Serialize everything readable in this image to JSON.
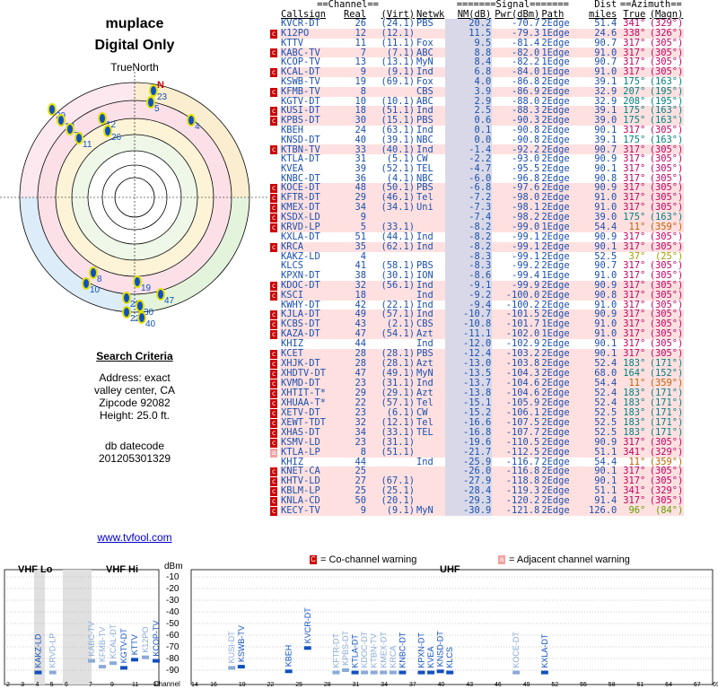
{
  "header": {
    "title": "muplace",
    "subtitle": "Digital Only",
    "north_label": "TrueNorth",
    "north_mark": "N"
  },
  "search": {
    "title": "Search Criteria",
    "address": "Address: exact",
    "city": "valley center, CA",
    "zip": "Zipcode 92082",
    "height": "Height: 25.0 ft.",
    "db_label": "db datecode",
    "db_value": "201205301329"
  },
  "footer_link": "www.tvfool.com",
  "polar_labels": [
    "23",
    "5",
    "12",
    "26",
    "4",
    "29",
    "13",
    "7",
    "11",
    "8",
    "10",
    "28",
    "22",
    "19",
    "30",
    "47",
    "40"
  ],
  "table": {
    "group_headers": [
      "==Channel==",
      "=======Signal=======",
      "Dist",
      "==Azimuth=="
    ],
    "columns": [
      "Callsign",
      "Real",
      "(Virt)",
      "Netwk",
      "NM(dB)",
      "Pwr(dBm)",
      "Path",
      "miles",
      "True",
      "(Magn)"
    ],
    "rows": [
      [
        "",
        "KVCR-DT",
        "26",
        "(24.1)",
        "PBS",
        "20.2",
        "-70.7",
        "2Edge",
        "51.4",
        "341°",
        "(329°)",
        "#c00060",
        "#fff"
      ],
      [
        "c",
        "K12PO",
        "12",
        "(12.1)",
        "",
        "11.5",
        "-79.3",
        "1Edge",
        "24.6",
        "338°",
        "(326°)",
        "#c00060",
        "#ffe0e0"
      ],
      [
        "",
        "KTTV",
        "11",
        "(11.1)",
        "Fox",
        "9.5",
        "-81.4",
        "2Edge",
        "90.7",
        "317°",
        "(305°)",
        "#c00060",
        "#fff"
      ],
      [
        "c",
        "KABC-TV",
        "7",
        "(7.1)",
        "ABC",
        "8.8",
        "-82.0",
        "1Edge",
        "91.0",
        "317°",
        "(305°)",
        "#c00060",
        "#ffe0e0"
      ],
      [
        "",
        "KCOP-TV",
        "13",
        "(13.1)",
        "MyN",
        "8.4",
        "-82.2",
        "1Edge",
        "90.7",
        "317°",
        "(305°)",
        "#c00060",
        "#fff"
      ],
      [
        "c",
        "KCAL-DT",
        "9",
        "(9.1)",
        "Ind",
        "6.8",
        "-84.0",
        "1Edge",
        "91.0",
        "317°",
        "(305°)",
        "#c00060",
        "#ffe0e0"
      ],
      [
        "",
        "KSWB-TV",
        "19",
        "(69.1)",
        "Fox",
        "4.0",
        "-86.8",
        "2Edge",
        "39.1",
        "175°",
        "(163°)",
        "#008080",
        "#fff"
      ],
      [
        "c",
        "KFMB-TV",
        "8",
        "",
        "CBS",
        "3.9",
        "-86.9",
        "2Edge",
        "32.9",
        "207°",
        "(195°)",
        "#008080",
        "#ffe0e0"
      ],
      [
        "",
        "KGTV-DT",
        "10",
        "(10.1)",
        "ABC",
        "2.9",
        "-88.0",
        "2Edge",
        "32.9",
        "208°",
        "(195°)",
        "#008080",
        "#fff"
      ],
      [
        "c",
        "KUSI-DT",
        "18",
        "(51.1)",
        "Ind",
        "2.5",
        "-88.3",
        "2Edge",
        "39.1",
        "175°",
        "(163°)",
        "#008080",
        "#ffe0e0"
      ],
      [
        "c",
        "KPBS-DT",
        "30",
        "(15.1)",
        "PBS",
        "0.6",
        "-90.3",
        "2Edge",
        "39.0",
        "175°",
        "(163°)",
        "#008080",
        "#ffe0e0"
      ],
      [
        "",
        "KBEH",
        "24",
        "(63.1)",
        "Ind",
        "0.1",
        "-90.8",
        "2Edge",
        "90.1",
        "317°",
        "(305°)",
        "#c00060",
        "#fff"
      ],
      [
        "",
        "KNSD-DT",
        "40",
        "(39.1)",
        "NBC",
        "0.0",
        "-90.8",
        "2Edge",
        "39.1",
        "175°",
        "(163°)",
        "#008080",
        "#fff"
      ],
      [
        "c",
        "KTBN-TV",
        "33",
        "(40.1)",
        "Ind",
        "-1.4",
        "-92.2",
        "2Edge",
        "90.7",
        "317°",
        "(305°)",
        "#c00060",
        "#ffe0e0"
      ],
      [
        "",
        "KTLA-DT",
        "31",
        "(5.1)",
        "CW",
        "-2.2",
        "-93.0",
        "2Edge",
        "90.9",
        "317°",
        "(305°)",
        "#c00060",
        "#fff"
      ],
      [
        "",
        "KVEA",
        "39",
        "(52.1)",
        "TEL",
        "-4.7",
        "-95.5",
        "2Edge",
        "90.1",
        "317°",
        "(305°)",
        "#c00060",
        "#fff"
      ],
      [
        "",
        "KNBC-DT",
        "36",
        "(4.1)",
        "NBC",
        "-6.0",
        "-96.8",
        "2Edge",
        "90.8",
        "317°",
        "(305°)",
        "#c00060",
        "#fff"
      ],
      [
        "c",
        "KOCE-DT",
        "48",
        "(50.1)",
        "PBS",
        "-6.8",
        "-97.6",
        "2Edge",
        "90.9",
        "317°",
        "(305°)",
        "#c00060",
        "#ffe0e0"
      ],
      [
        "c",
        "KFTR-DT",
        "29",
        "(46.1)",
        "Tel",
        "-7.2",
        "-98.0",
        "2Edge",
        "91.0",
        "317°",
        "(305°)",
        "#c00060",
        "#ffe0e0"
      ],
      [
        "c",
        "KMEX-DT",
        "34",
        "(34.1)",
        "Uni",
        "-7.3",
        "-98.1",
        "2Edge",
        "91.0",
        "317°",
        "(305°)",
        "#c00060",
        "#ffe0e0"
      ],
      [
        "c",
        "KSDX-LD",
        "9",
        "",
        "",
        "-7.4",
        "-98.2",
        "2Edge",
        "39.0",
        "175°",
        "(163°)",
        "#008080",
        "#ffe0e0"
      ],
      [
        "c",
        "KRVD-LP",
        "5",
        "(33.1)",
        "",
        "-8.2",
        "-99.0",
        "1Edge",
        "54.4",
        "11°",
        "(359°)",
        "#c06000",
        "#ffe0e0"
      ],
      [
        "",
        "KXLA-DT",
        "51",
        "(44.1)",
        "Ind",
        "-8.2",
        "-99.1",
        "2Edge",
        "90.9",
        "317°",
        "(305°)",
        "#c00060",
        "#fff"
      ],
      [
        "c",
        "KRCA",
        "35",
        "(62.1)",
        "Ind",
        "-8.2",
        "-99.1",
        "2Edge",
        "90.1",
        "317°",
        "(305°)",
        "#c00060",
        "#ffe0e0"
      ],
      [
        "",
        "KAKZ-LD",
        "4",
        "",
        "",
        "-8.3",
        "-99.1",
        "2Edge",
        "52.5",
        "37°",
        "(25°)",
        "#a0a000",
        "#fff"
      ],
      [
        "",
        "KLCS",
        "41",
        "(58.1)",
        "PBS",
        "-8.3",
        "-99.2",
        "2Edge",
        "90.7",
        "317°",
        "(305°)",
        "#c00060",
        "#fff"
      ],
      [
        "",
        "KPXN-DT",
        "38",
        "(30.1)",
        "ION",
        "-8.6",
        "-99.4",
        "1Edge",
        "91.0",
        "317°",
        "(305°)",
        "#c00060",
        "#fff"
      ],
      [
        "c",
        "KDOC-DT",
        "32",
        "(56.1)",
        "Ind",
        "-9.1",
        "-99.9",
        "2Edge",
        "90.9",
        "317°",
        "(305°)",
        "#c00060",
        "#ffe0e0"
      ],
      [
        "c",
        "KSCI",
        "18",
        "",
        "Ind",
        "-9.2",
        "-100.0",
        "2Edge",
        "90.8",
        "317°",
        "(305°)",
        "#c00060",
        "#ffe0e0"
      ],
      [
        "",
        "KWHY-DT",
        "42",
        "(22.1)",
        "Ind",
        "-9.4",
        "-100.2",
        "2Edge",
        "91.0",
        "317°",
        "(305°)",
        "#c00060",
        "#fff"
      ],
      [
        "c",
        "KJLA-DT",
        "49",
        "(57.1)",
        "Ind",
        "-10.7",
        "-101.5",
        "2Edge",
        "90.9",
        "317°",
        "(305°)",
        "#c00060",
        "#ffe0e0"
      ],
      [
        "c",
        "KCBS-DT",
        "43",
        "(2.1)",
        "CBS",
        "-10.8",
        "-101.7",
        "1Edge",
        "91.0",
        "317°",
        "(305°)",
        "#c00060",
        "#ffe0e0"
      ],
      [
        "c",
        "KAZA-DT",
        "47",
        "(54.1)",
        "Azt",
        "-11.1",
        "-102.0",
        "1Edge",
        "91.0",
        "317°",
        "(305°)",
        "#c00060",
        "#ffe0e0"
      ],
      [
        "",
        "KHIZ",
        "44",
        "",
        "Ind",
        "-12.0",
        "-102.9",
        "2Edge",
        "90.1",
        "317°",
        "(305°)",
        "#c00060",
        "#fff"
      ],
      [
        "c",
        "KCET",
        "28",
        "(28.1)",
        "PBS",
        "-12.4",
        "-103.2",
        "2Edge",
        "90.1",
        "317°",
        "(305°)",
        "#c00060",
        "#ffe0e0"
      ],
      [
        "c",
        "XHJK-DT",
        "28",
        "(28.1)",
        "Azt",
        "-13.0",
        "-103.8",
        "2Edge",
        "52.4",
        "183°",
        "(171°)",
        "#008080",
        "#ffe0e0"
      ],
      [
        "c",
        "XHDTV-DT",
        "47",
        "(49.1)",
        "MyN",
        "-13.5",
        "-104.3",
        "2Edge",
        "68.0",
        "164°",
        "(152°)",
        "#008080",
        "#ffe0e0"
      ],
      [
        "c",
        "KVMD-DT",
        "23",
        "(31.1)",
        "Ind",
        "-13.7",
        "-104.6",
        "2Edge",
        "54.4",
        "11°",
        "(359°)",
        "#c06000",
        "#ffe0e0"
      ],
      [
        "c",
        "XHTIT-T*",
        "29",
        "(29.1)",
        "Azt",
        "-13.8",
        "-104.6",
        "2Edge",
        "52.4",
        "183°",
        "(171°)",
        "#008080",
        "#ffe0e0"
      ],
      [
        "c",
        "XHUAA-T*",
        "22",
        "(57.1)",
        "Tel",
        "-15.1",
        "-105.9",
        "2Edge",
        "52.4",
        "183°",
        "(171°)",
        "#008080",
        "#ffe0e0"
      ],
      [
        "c",
        "XETV-DT",
        "23",
        "(6.1)",
        "CW",
        "-15.2",
        "-106.1",
        "2Edge",
        "52.5",
        "183°",
        "(171°)",
        "#008080",
        "#ffe0e0"
      ],
      [
        "c",
        "XEWT-TDT",
        "32",
        "(12.1)",
        "Tel",
        "-16.6",
        "-107.5",
        "2Edge",
        "52.5",
        "183°",
        "(171°)",
        "#008080",
        "#ffe0e0"
      ],
      [
        "c",
        "XHAS-DT",
        "34",
        "(33.1)",
        "TEL",
        "-16.8",
        "-107.7",
        "2Edge",
        "52.5",
        "183°",
        "(171°)",
        "#008080",
        "#ffe0e0"
      ],
      [
        "c",
        "KSMV-LD",
        "23",
        "(31.1)",
        "",
        "-19.6",
        "-110.5",
        "2Edge",
        "90.9",
        "317°",
        "(305°)",
        "#c00060",
        "#ffe0e0"
      ],
      [
        "a",
        "KTLA-LP",
        "8",
        "(51.1)",
        "",
        "-21.7",
        "-112.5",
        "2Edge",
        "51.1",
        "341°",
        "(329°)",
        "#c00060",
        "#ffe0e0"
      ],
      [
        "",
        "KHIZ",
        "44",
        "",
        "Ind",
        "-25.9",
        "-116.7",
        "2Edge",
        "54.4",
        "11°",
        "(359°)",
        "#c06000",
        "#fff"
      ],
      [
        "c",
        "KNET-CA",
        "25",
        "",
        "",
        "-26.0",
        "-116.8",
        "2Edge",
        "90.1",
        "317°",
        "(305°)",
        "#c00060",
        "#ffe0e0"
      ],
      [
        "c",
        "KHTV-LD",
        "27",
        "(67.1)",
        "",
        "-27.9",
        "-118.8",
        "2Edge",
        "90.1",
        "317°",
        "(305°)",
        "#c00060",
        "#ffe0e0"
      ],
      [
        "c",
        "KBLM-LP",
        "25",
        "(25.1)",
        "",
        "-28.4",
        "-119.3",
        "2Edge",
        "51.1",
        "341°",
        "(329°)",
        "#c00060",
        "#ffe0e0"
      ],
      [
        "c",
        "KNLA-CD",
        "50",
        "(20.1)",
        "",
        "-29.3",
        "-120.2",
        "2Edge",
        "91.4",
        "317°",
        "(305°)",
        "#c00060",
        "#ffe0e0"
      ],
      [
        "c",
        "KECY-TV",
        "9",
        "(9.1)",
        "MyN",
        "-30.9",
        "-121.8",
        "2Edge",
        "126.0",
        "96°",
        "(84°)",
        "#60a000",
        "#ffe0e0"
      ]
    ]
  },
  "legend": {
    "cochannel": "= Co-channel warning",
    "adjacent": "= Adjacent channel warning",
    "c": "C",
    "a": "a"
  },
  "spectrum": {
    "vhf_lo": "VHF Lo",
    "vhf_hi": "VHF Hi",
    "uhf": "UHF",
    "dbm": "dBm",
    "channel_label": "Channel",
    "dbm_ticks": [
      "-10",
      "-20",
      "-30",
      "-40",
      "-50",
      "-60",
      "-70",
      "-80",
      "-90"
    ],
    "lo_ticks": [
      "2",
      "3",
      "4",
      "5",
      "6"
    ],
    "hi_ticks": [
      "7",
      "9",
      "11",
      "13"
    ],
    "uhf_ticks": [
      "14",
      "16",
      "19",
      "22",
      "25",
      "28",
      "31",
      "34",
      "37",
      "40",
      "43",
      "46",
      "49",
      "52",
      "55",
      "58",
      "61",
      "64",
      "67",
      "69"
    ],
    "bars": [
      {
        "label": "KAKZ-LD",
        "ch": 4,
        "dbm": -99,
        "strong": true
      },
      {
        "label": "KRVD-LP",
        "ch": 5,
        "dbm": -99,
        "strong": false
      },
      {
        "label": "KABC-TV",
        "ch": 7,
        "dbm": -82,
        "strong": false
      },
      {
        "label": "KFMB-TV",
        "ch": 8,
        "dbm": -87,
        "strong": false
      },
      {
        "label": "KCAL-DT",
        "ch": 9,
        "dbm": -84,
        "strong": false
      },
      {
        "label": "KGTV-DT",
        "ch": 10,
        "dbm": -88,
        "strong": true
      },
      {
        "label": "KTTV",
        "ch": 11,
        "dbm": -81,
        "strong": true
      },
      {
        "label": "K12PO",
        "ch": 12,
        "dbm": -79,
        "strong": false
      },
      {
        "label": "KCOP-TV",
        "ch": 13,
        "dbm": -82,
        "strong": true
      },
      {
        "label": "KUSI-DT",
        "ch": 18,
        "dbm": -88,
        "strong": false
      },
      {
        "label": "KSWB-TV",
        "ch": 19,
        "dbm": -87,
        "strong": true
      },
      {
        "label": "KBEH",
        "ch": 24,
        "dbm": -91,
        "strong": true
      },
      {
        "label": "KVCR-DT",
        "ch": 26,
        "dbm": -71,
        "strong": true
      },
      {
        "label": "KFTR-DT",
        "ch": 29,
        "dbm": -98,
        "strong": false
      },
      {
        "label": "KPBS-DT",
        "ch": 30,
        "dbm": -90,
        "strong": false
      },
      {
        "label": "KTLA-DT",
        "ch": 31,
        "dbm": -93,
        "strong": true
      },
      {
        "label": "KDOC-DT",
        "ch": 32,
        "dbm": -100,
        "strong": false
      },
      {
        "label": "KTBN-TV",
        "ch": 33,
        "dbm": -92,
        "strong": false
      },
      {
        "label": "KMEX-DT",
        "ch": 34,
        "dbm": -98,
        "strong": false
      },
      {
        "label": "KRCA",
        "ch": 35,
        "dbm": -99,
        "strong": false
      },
      {
        "label": "KNBC-DT",
        "ch": 36,
        "dbm": -97,
        "strong": true
      },
      {
        "label": "KPXN-DT",
        "ch": 38,
        "dbm": -99,
        "strong": true
      },
      {
        "label": "KVEA",
        "ch": 39,
        "dbm": -96,
        "strong": true
      },
      {
        "label": "KNSD-DT",
        "ch": 40,
        "dbm": -91,
        "strong": true
      },
      {
        "label": "KLCS",
        "ch": 41,
        "dbm": -99,
        "strong": true
      },
      {
        "label": "KOCE-DT",
        "ch": 48,
        "dbm": -98,
        "strong": false
      },
      {
        "label": "KXLA-DT",
        "ch": 51,
        "dbm": -99,
        "strong": true
      }
    ]
  }
}
